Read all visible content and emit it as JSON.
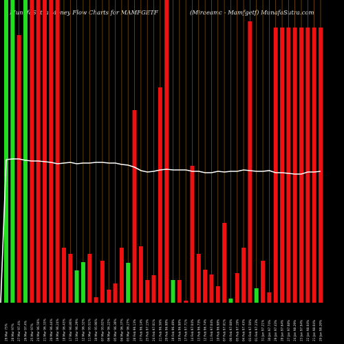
{
  "title_left": "MunafaSutra  Money Flow  Charts for MAMFGETF",
  "title_right": "(Miraeamc -  Mamfgetf) MunafaSutra.com",
  "colors": {
    "background": "#000000",
    "up": "#22dd22",
    "down": "#ee1111",
    "line": "#ffffff",
    "grid": "#8a5a10"
  },
  "chart_data": {
    "type": "bar",
    "title": "MunafaSutra  Money Flow  Charts for MAMFGETF",
    "subtitle": "(Miraeamc -  Mamfgetf) MunafaSutra.com",
    "ylim": [
      0,
      440
    ],
    "grid": true,
    "categories": [
      "Sat 29 Mar",
      "Fri 28 Mar",
      "Thu 27 Mar",
      "Wed 26 Mar",
      "Tue 25 Mar",
      "Mon 24 Mar",
      "Fri 21 Mar",
      "Thu 20 Mar",
      "Wed 19 Mar",
      "Tue 18 Mar",
      "Mon 17 Mar",
      "Thu 13 Mar",
      "Wed 12 Mar",
      "Tue 11 Mar",
      "Mon 10 Mar",
      "Fri 07 Mar",
      "Thu 06 Mar",
      "Wed 05 Mar",
      "Tue 04 Mar",
      "Mon 03 Mar",
      "Fri 28 Feb",
      "Thu 27 Feb",
      "Tue 25 Feb",
      "Mon 24 Feb",
      "Fri 21 Feb",
      "Thu 20 Feb",
      "Wed 19 Feb",
      "Tue 18 Feb",
      "Mon 17 Feb",
      "Fri 14 Feb",
      "Thu 13 Feb",
      "Wed 12 Feb",
      "Tue 11 Feb",
      "Mon 10 Feb",
      "Fri 07 Feb",
      "Thu 06 Feb",
      "Wed 05 Feb",
      "Tue 04 Feb",
      "Mon 03 Feb",
      "Sat 01 Feb",
      "Fri 31 Jan",
      "Thu 30 Jan",
      "Wed 29 Jan",
      "Tue 28 Jan",
      "Mon 27 Jan",
      "Fri 24 Jan",
      "Thu 23 Jan",
      "Wed 22 Jan",
      "Tue 21 Jan",
      "Mon 20 Jan"
    ],
    "x_tick_labels": [
      "29 Mar 75%",
      "28 Mar 97%",
      "27 Mar 97.4%",
      "26 Mar 97.4%",
      "25 Mar 97%",
      "24 Mar 96.59%",
      "21 Mar 96.33%",
      "20 Mar 96.44%",
      "19 Mar 96.24%",
      "18 Mar 96.43%",
      "17 Mar 96.86%",
      "13 Mar 96.29%",
      "12 Mar 96.32%",
      "11 Mar 95.91%",
      "10 Mar 95.96%",
      "07 Mar 95.82%",
      "06 Mar 96.22%",
      "05 Mar 96.39%",
      "04 Mar 96.37%",
      "03 Mar 96.27%",
      "28 Feb 96.13%",
      "27 Feb 96.14%",
      "25 Feb 97.15%",
      "24 Feb 97.01%",
      "21 Feb 96.56%",
      "20 Feb 96.98%",
      "19 Feb 96.49%",
      "18 Feb 96.98%",
      "17 Feb 97.71%",
      "14 Feb 97.04%",
      "13 Feb 96.73%",
      "12 Feb 96.74%",
      "11 Feb 97.04%",
      "10 Feb 96.98%",
      "07 Feb 97.01%",
      "06 Feb 97.08%",
      "05 Feb 97.19%",
      "04 Feb 97.43%",
      "03 Feb 97.50%",
      "01 Feb 97.23%",
      "31 Jan 97.21%",
      "30 Jan 97.74%",
      "29 Jan 97.43%",
      "28 Jan 97.64%",
      "27 Jan 97.68%",
      "24 Jan 98.29%",
      "23 Jan 97.94%",
      "22 Jan 98.04%",
      "21 Jan 98.04%",
      "20 Jan 98.20%"
    ],
    "series": [
      {
        "values": [
          440,
          440,
          389,
          440,
          440,
          440,
          440,
          440,
          440,
          80,
          71,
          47,
          59,
          71,
          8,
          61,
          19,
          28,
          80,
          58,
          280,
          82,
          33,
          40,
          313,
          440,
          33,
          33,
          3,
          199,
          71,
          48,
          41,
          24,
          116,
          6,
          43,
          80,
          409,
          21,
          61,
          15,
          400,
          400,
          400,
          400,
          400,
          400,
          400,
          400
        ],
        "colors": [
          "up",
          "up",
          "down",
          "up",
          "down",
          "down",
          "down",
          "down",
          "down",
          "down",
          "down",
          "up",
          "up",
          "down",
          "down",
          "down",
          "down",
          "down",
          "down",
          "up",
          "down",
          "down",
          "down",
          "down",
          "down",
          "down",
          "up",
          "down",
          "down",
          "down",
          "down",
          "down",
          "down",
          "down",
          "down",
          "up",
          "down",
          "down",
          "down",
          "up",
          "down",
          "down",
          "down",
          "down",
          "down",
          "down",
          "down",
          "down",
          "down",
          "down"
        ]
      }
    ],
    "line": [
      208,
      209,
      209,
      207,
      206,
      206,
      205,
      204,
      202,
      203,
      204,
      202,
      203,
      203,
      204,
      204,
      203,
      203,
      201,
      200,
      197,
      192,
      190,
      191,
      193,
      194,
      193,
      193,
      193,
      191,
      191,
      189,
      189,
      191,
      190,
      191,
      191,
      193,
      192,
      191,
      191,
      192,
      189,
      189,
      188,
      187,
      187,
      190,
      190,
      191
    ]
  }
}
